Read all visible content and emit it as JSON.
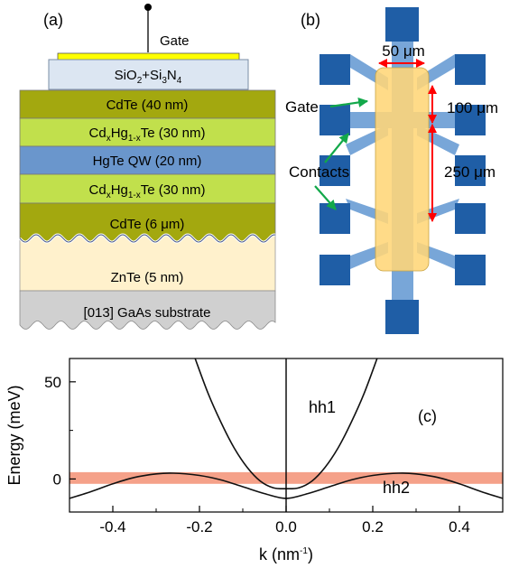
{
  "panel_a": {
    "label": "(a)",
    "gate_label": "Gate",
    "dielectric": {
      "parts": [
        "SiO",
        "2",
        "+Si",
        "3",
        "N",
        "4"
      ]
    },
    "layers": [
      {
        "parts": [
          "CdTe (40 nm)"
        ]
      },
      {
        "parts": [
          "Cd",
          "x",
          "Hg",
          "1-x",
          "Te (30 nm)"
        ]
      },
      {
        "parts": [
          "HgTe QW (20 nm)"
        ]
      },
      {
        "parts": [
          "Cd",
          "x",
          "Hg",
          "1-x",
          "Te (30 nm)"
        ]
      },
      {
        "parts": [
          "CdTe (6 μm)"
        ]
      },
      {
        "parts": [
          "ZnTe (5 nm)"
        ]
      },
      {
        "parts": [
          "[013] GaAs substrate"
        ]
      }
    ],
    "colors": {
      "gate_metal": "#ffff00",
      "dielectric": "#dce6f2",
      "cdte": "#a3a80f",
      "cdhgte": "#c1e04c",
      "hgte": "#6a96cc",
      "znte": "#fff1cc",
      "gaas": "#d0d0d0"
    }
  },
  "panel_b": {
    "label": "(b)",
    "width_label": "50 μm",
    "spacing_label_1": "100 μm",
    "spacing_label_2": "250 μm",
    "gate_label": "Gate",
    "contacts_label": "Contacts",
    "colors": {
      "contact_pad": "#1f5ea6",
      "mesa": "#78a6d8",
      "gate": "#ffd678",
      "arrow_red": "#ff0000",
      "arrow_green": "#12a84a"
    }
  },
  "panel_c": {
    "label": "(c)",
    "chart_data": {
      "type": "line",
      "xlabel": [
        "k (nm",
        "-1",
        ")"
      ],
      "ylabel": "Energy (meV)",
      "xlim": [
        -0.5,
        0.5
      ],
      "ylim": [
        -17,
        62
      ],
      "xticks": [
        "-0.4",
        "-0.2",
        "0.0",
        "0.2",
        "0.4"
      ],
      "xtick_values": [
        -0.4,
        -0.2,
        0.0,
        0.2,
        0.4
      ],
      "yticks": [
        "0",
        "50"
      ],
      "ytick_values": [
        0,
        50
      ],
      "band_region": {
        "from": -2.5,
        "to": 3.5,
        "color": "#f4977c"
      },
      "series": [
        {
          "name": "hh1",
          "x": [
            -0.21,
            -0.18,
            -0.15,
            -0.12,
            -0.09,
            -0.06,
            -0.03,
            0.0,
            0.03,
            0.06,
            0.09,
            0.12,
            0.15,
            0.18,
            0.21
          ],
          "y": [
            62,
            44,
            29,
            16,
            6,
            -1,
            -4.5,
            -5,
            -4.5,
            -1,
            6,
            16,
            29,
            44,
            62
          ]
        },
        {
          "name": "hh2",
          "x": [
            -0.5,
            -0.45,
            -0.4,
            -0.35,
            -0.3,
            -0.26,
            -0.2,
            -0.15,
            -0.1,
            -0.05,
            0.0,
            0.05,
            0.1,
            0.15,
            0.2,
            0.26,
            0.3,
            0.35,
            0.4,
            0.45,
            0.5
          ],
          "y": [
            -10,
            -6.5,
            -2.5,
            0.8,
            2.6,
            3.0,
            1.8,
            -0.5,
            -4.0,
            -7.5,
            -10,
            -7.5,
            -4.0,
            -0.5,
            1.8,
            3.0,
            2.6,
            0.8,
            -2.5,
            -6.5,
            -10
          ]
        }
      ]
    }
  }
}
